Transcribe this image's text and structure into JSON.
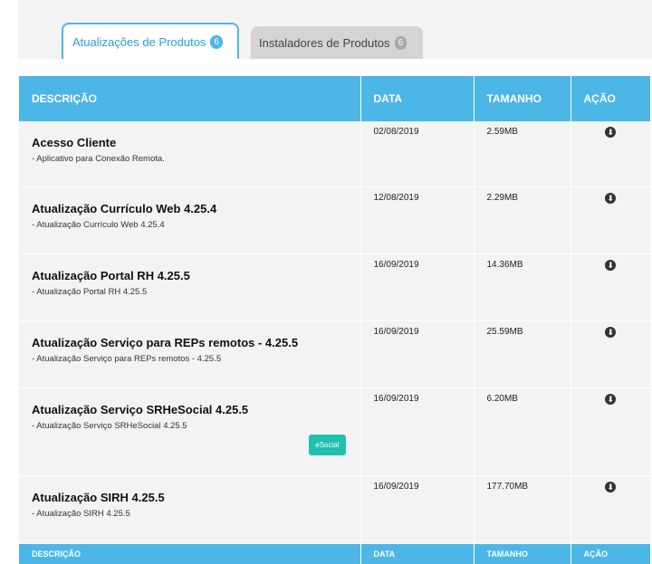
{
  "tabs": [
    {
      "label": "Atualizações de Produtos",
      "count": "6"
    },
    {
      "label": "Instaladores de Produtos",
      "count": "6"
    }
  ],
  "columns": {
    "descricao": "DESCRIÇÃO",
    "data": "DATA",
    "tamanho": "TAMANHO",
    "acao": "AÇÃO"
  },
  "rows": [
    {
      "name": "Acesso Cliente",
      "sub": "- Aplicativo para Conexão Remota.",
      "date": "02/08/2019",
      "size": "2.59MB"
    },
    {
      "name": "Atualização Currículo Web 4.25.4",
      "sub": "- Atualização Currículo Web 4.25.4",
      "date": "12/08/2019",
      "size": "2.29MB"
    },
    {
      "name": "Atualização Portal RH 4.25.5",
      "sub": "- Atualização Portal RH 4.25.5",
      "date": "16/09/2019",
      "size": "14.36MB"
    },
    {
      "name": "Atualização Serviço para REPs remotos - 4.25.5",
      "sub": "- Atualização Serviço para REPs remotos - 4.25.5",
      "date": "16/09/2019",
      "size": "25.59MB"
    },
    {
      "name": "Atualização Serviço SRHeSocial 4.25.5",
      "sub": "- Atualização Serviço SRHeSocial 4.25.5",
      "date": "16/09/2019",
      "size": "6.20MB",
      "badge": "eSocial"
    },
    {
      "name": "Atualização SIRH 4.25.5",
      "sub": "- Atualização SIRH 4.25.5",
      "date": "16/09/2019",
      "size": "177.70MB"
    }
  ],
  "icons": {
    "download": "download-icon"
  },
  "colors": {
    "accent": "#4cb6e6",
    "esocial": "#20bfb0"
  }
}
